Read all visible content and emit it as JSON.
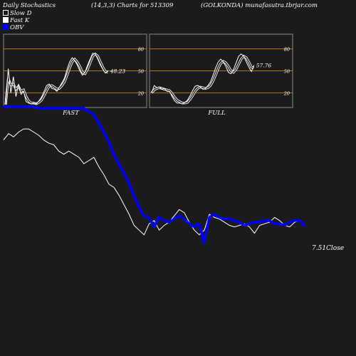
{
  "header": {
    "left": "Daily Stochastics",
    "params": "(14,3,3) Charts for 513309",
    "site": "(GOLKONDA) munafasutra.tbrjar.com"
  },
  "legend": [
    {
      "label": "Slow  D",
      "swatch": "hollow"
    },
    {
      "label": "Fast K",
      "swatch": "white"
    },
    {
      "label": "OBV",
      "swatch": "blue"
    }
  ],
  "colors": {
    "background": "#1b1b1b",
    "panel_border": "#8a8a8a",
    "level_line": "#b8741a",
    "obv": "#0000ff",
    "close": "#ffffff",
    "stoch": "#ffffff"
  },
  "chart_data": [
    {
      "type": "line",
      "name": "FAST",
      "levels": [
        80,
        50,
        20
      ],
      "ylim": [
        0,
        100
      ],
      "last_value_label": "48.23",
      "k": [
        4,
        53,
        20,
        42,
        15,
        32,
        18,
        22,
        8,
        6,
        5,
        6,
        5,
        9,
        14,
        22,
        30,
        32,
        26,
        25,
        22,
        28,
        34,
        40,
        52,
        62,
        68,
        64,
        58,
        50,
        44,
        48,
        58,
        66,
        74,
        73,
        66,
        58,
        52,
        47,
        50
      ],
      "d": [
        4,
        40,
        31,
        32,
        25,
        29,
        22,
        24,
        15,
        9,
        6,
        6,
        5,
        7,
        10,
        16,
        23,
        29,
        30,
        28,
        25,
        26,
        30,
        35,
        44,
        54,
        62,
        66,
        62,
        56,
        48,
        46,
        52,
        61,
        70,
        73,
        70,
        62,
        55,
        49,
        48
      ]
    },
    {
      "type": "line",
      "name": "FULL",
      "levels": [
        80,
        50,
        20
      ],
      "ylim": [
        0,
        100
      ],
      "last_value_label": "57.76",
      "k": [
        20,
        30,
        27,
        28,
        25,
        26,
        22,
        22,
        15,
        9,
        6,
        6,
        5,
        7,
        10,
        16,
        23,
        29,
        30,
        28,
        25,
        26,
        30,
        35,
        44,
        54,
        62,
        66,
        62,
        56,
        48,
        46,
        52,
        61,
        70,
        73,
        70,
        62,
        55,
        49,
        57.76
      ],
      "d": [
        20,
        24,
        26,
        27,
        26,
        25,
        24,
        23,
        19,
        14,
        10,
        8,
        6,
        6,
        7,
        11,
        16,
        22,
        26,
        28,
        27,
        26,
        27,
        30,
        36,
        44,
        53,
        60,
        63,
        61,
        56,
        50,
        48,
        52,
        59,
        66,
        70,
        68,
        62,
        55,
        54
      ]
    },
    {
      "type": "line",
      "name": "OBV",
      "last_value_label": "",
      "values": [
        100,
        100,
        100,
        100,
        100,
        100,
        100,
        99,
        99,
        99,
        99,
        99,
        99,
        99,
        99,
        99,
        99,
        97,
        95,
        90,
        84,
        78,
        70,
        64,
        58,
        52,
        44,
        37,
        31,
        30,
        24,
        30,
        28,
        27,
        29,
        31,
        29,
        26,
        24,
        26,
        14,
        30,
        32,
        30,
        29,
        29,
        28,
        27,
        25,
        26,
        27,
        27,
        28,
        28,
        26,
        26,
        25,
        27,
        28,
        28,
        25
      ]
    },
    {
      "type": "line",
      "name": "Close",
      "last_value_label": "7.51",
      "values": [
        79,
        83,
        81,
        84,
        86,
        86,
        84,
        82,
        79,
        77,
        76,
        72,
        70,
        72,
        70,
        68,
        64,
        66,
        68,
        62,
        57,
        51,
        49,
        44,
        38,
        32,
        25,
        22,
        19,
        26,
        28,
        22,
        25,
        27,
        31,
        35,
        33,
        27,
        22,
        19,
        22,
        32,
        30,
        29,
        27,
        25,
        24,
        25,
        26,
        24,
        20,
        25,
        26,
        27,
        30,
        28,
        25,
        24,
        27,
        28,
        25
      ]
    }
  ],
  "panel_labels": {
    "fast": "FAST",
    "full": "FULL"
  },
  "axis": {
    "fast_ticks": [
      "80",
      "50",
      "20"
    ],
    "full_ticks": [
      "80",
      "50",
      "20"
    ]
  },
  "main": {
    "close_label": "7.51Close"
  }
}
